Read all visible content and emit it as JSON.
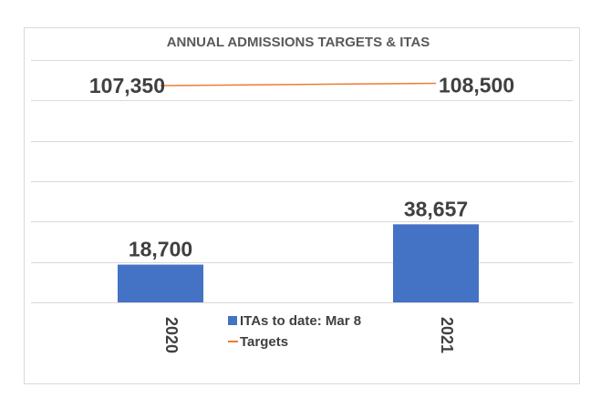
{
  "chart_data": {
    "type": "bar",
    "title": "ANNUAL ADMISSIONS TARGETS & ITAS",
    "categories": [
      "2020",
      "2021"
    ],
    "series": [
      {
        "name": "ITAs to date: Mar 8",
        "kind": "bar",
        "color": "#4472c4",
        "values": [
          18700,
          38657
        ],
        "labels": [
          "18,700",
          "38,657"
        ]
      },
      {
        "name": "Targets",
        "kind": "line",
        "color": "#ed7d31",
        "values": [
          107350,
          108500
        ],
        "labels": [
          "107,350",
          "108,500"
        ]
      }
    ],
    "xlabel": "",
    "ylabel": "",
    "ylim": [
      0,
      120000
    ],
    "grid": true,
    "legend_position": "bottom-center"
  }
}
